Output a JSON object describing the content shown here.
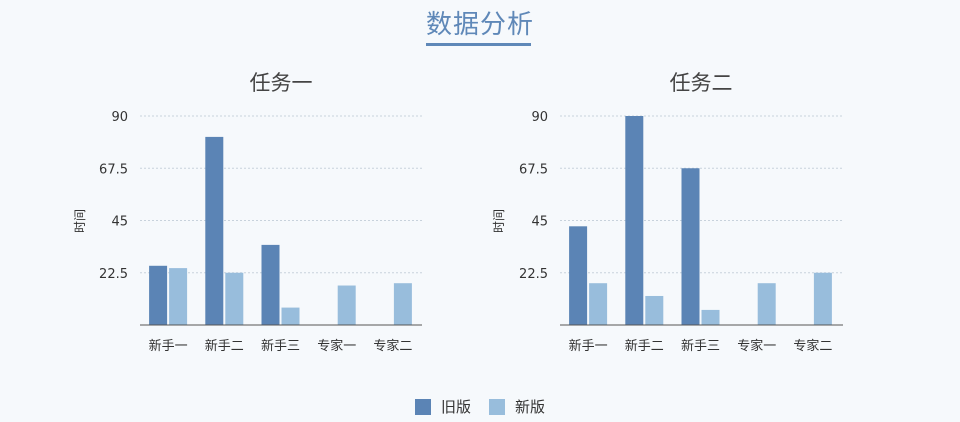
{
  "page": {
    "title": "数据分析"
  },
  "colors": {
    "old": "#5b84b5",
    "new": "#98bddc",
    "axis": "#555555",
    "grid": "#c8d2dc"
  },
  "legend": [
    {
      "label": "旧版",
      "color": "#5b84b5"
    },
    {
      "label": "新版",
      "color": "#98bddc"
    }
  ],
  "chart_data": [
    {
      "type": "bar",
      "title": "任务一",
      "ylabel": "时间",
      "xlabel": "",
      "categories": [
        "新手一",
        "新手二",
        "新手三",
        "专家一",
        "专家二"
      ],
      "ylim": [
        0,
        90
      ],
      "yticks": [
        22.5,
        45,
        67.5,
        90
      ],
      "grid": true,
      "series": [
        {
          "name": "旧版",
          "values": [
            25.5,
            81,
            34.5,
            null,
            null
          ]
        },
        {
          "name": "新版",
          "values": [
            24.5,
            22.5,
            7.5,
            17,
            18
          ]
        }
      ]
    },
    {
      "type": "bar",
      "title": "任务二",
      "ylabel": "时间",
      "xlabel": "",
      "categories": [
        "新手一",
        "新手二",
        "新手三",
        "专家一",
        "专家二"
      ],
      "ylim": [
        0,
        90
      ],
      "yticks": [
        22.5,
        45,
        67.5,
        90
      ],
      "grid": true,
      "series": [
        {
          "name": "旧版",
          "values": [
            42.5,
            90,
            67.5,
            null,
            null
          ]
        },
        {
          "name": "新版",
          "values": [
            18,
            12.5,
            6.5,
            18,
            22.5
          ]
        }
      ]
    }
  ]
}
